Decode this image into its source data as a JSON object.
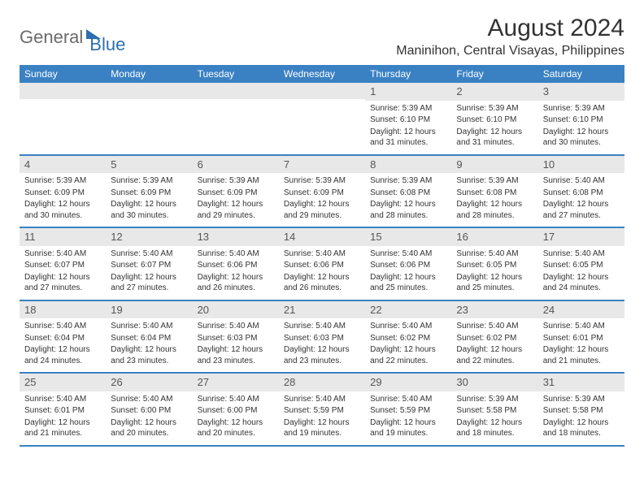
{
  "logo": {
    "part1": "General",
    "part2": "Blue"
  },
  "title": "August 2024",
  "location": "Maninihon, Central Visayas, Philippines",
  "weekdays": [
    "Sunday",
    "Monday",
    "Tuesday",
    "Wednesday",
    "Thursday",
    "Friday",
    "Saturday"
  ],
  "colors": {
    "header_bg": "#3a81c4",
    "header_text": "#ffffff",
    "daynum_bg": "#e8e8e8",
    "border": "#3a81c4",
    "logo_gray": "#6b6b6b",
    "logo_blue": "#2c6fb0"
  },
  "weeks": [
    [
      {
        "n": "",
        "sr": "",
        "ss": "",
        "dl": ""
      },
      {
        "n": "",
        "sr": "",
        "ss": "",
        "dl": ""
      },
      {
        "n": "",
        "sr": "",
        "ss": "",
        "dl": ""
      },
      {
        "n": "",
        "sr": "",
        "ss": "",
        "dl": ""
      },
      {
        "n": "1",
        "sr": "Sunrise: 5:39 AM",
        "ss": "Sunset: 6:10 PM",
        "dl": "Daylight: 12 hours and 31 minutes."
      },
      {
        "n": "2",
        "sr": "Sunrise: 5:39 AM",
        "ss": "Sunset: 6:10 PM",
        "dl": "Daylight: 12 hours and 31 minutes."
      },
      {
        "n": "3",
        "sr": "Sunrise: 5:39 AM",
        "ss": "Sunset: 6:10 PM",
        "dl": "Daylight: 12 hours and 30 minutes."
      }
    ],
    [
      {
        "n": "4",
        "sr": "Sunrise: 5:39 AM",
        "ss": "Sunset: 6:09 PM",
        "dl": "Daylight: 12 hours and 30 minutes."
      },
      {
        "n": "5",
        "sr": "Sunrise: 5:39 AM",
        "ss": "Sunset: 6:09 PM",
        "dl": "Daylight: 12 hours and 30 minutes."
      },
      {
        "n": "6",
        "sr": "Sunrise: 5:39 AM",
        "ss": "Sunset: 6:09 PM",
        "dl": "Daylight: 12 hours and 29 minutes."
      },
      {
        "n": "7",
        "sr": "Sunrise: 5:39 AM",
        "ss": "Sunset: 6:09 PM",
        "dl": "Daylight: 12 hours and 29 minutes."
      },
      {
        "n": "8",
        "sr": "Sunrise: 5:39 AM",
        "ss": "Sunset: 6:08 PM",
        "dl": "Daylight: 12 hours and 28 minutes."
      },
      {
        "n": "9",
        "sr": "Sunrise: 5:39 AM",
        "ss": "Sunset: 6:08 PM",
        "dl": "Daylight: 12 hours and 28 minutes."
      },
      {
        "n": "10",
        "sr": "Sunrise: 5:40 AM",
        "ss": "Sunset: 6:08 PM",
        "dl": "Daylight: 12 hours and 27 minutes."
      }
    ],
    [
      {
        "n": "11",
        "sr": "Sunrise: 5:40 AM",
        "ss": "Sunset: 6:07 PM",
        "dl": "Daylight: 12 hours and 27 minutes."
      },
      {
        "n": "12",
        "sr": "Sunrise: 5:40 AM",
        "ss": "Sunset: 6:07 PM",
        "dl": "Daylight: 12 hours and 27 minutes."
      },
      {
        "n": "13",
        "sr": "Sunrise: 5:40 AM",
        "ss": "Sunset: 6:06 PM",
        "dl": "Daylight: 12 hours and 26 minutes."
      },
      {
        "n": "14",
        "sr": "Sunrise: 5:40 AM",
        "ss": "Sunset: 6:06 PM",
        "dl": "Daylight: 12 hours and 26 minutes."
      },
      {
        "n": "15",
        "sr": "Sunrise: 5:40 AM",
        "ss": "Sunset: 6:06 PM",
        "dl": "Daylight: 12 hours and 25 minutes."
      },
      {
        "n": "16",
        "sr": "Sunrise: 5:40 AM",
        "ss": "Sunset: 6:05 PM",
        "dl": "Daylight: 12 hours and 25 minutes."
      },
      {
        "n": "17",
        "sr": "Sunrise: 5:40 AM",
        "ss": "Sunset: 6:05 PM",
        "dl": "Daylight: 12 hours and 24 minutes."
      }
    ],
    [
      {
        "n": "18",
        "sr": "Sunrise: 5:40 AM",
        "ss": "Sunset: 6:04 PM",
        "dl": "Daylight: 12 hours and 24 minutes."
      },
      {
        "n": "19",
        "sr": "Sunrise: 5:40 AM",
        "ss": "Sunset: 6:04 PM",
        "dl": "Daylight: 12 hours and 23 minutes."
      },
      {
        "n": "20",
        "sr": "Sunrise: 5:40 AM",
        "ss": "Sunset: 6:03 PM",
        "dl": "Daylight: 12 hours and 23 minutes."
      },
      {
        "n": "21",
        "sr": "Sunrise: 5:40 AM",
        "ss": "Sunset: 6:03 PM",
        "dl": "Daylight: 12 hours and 23 minutes."
      },
      {
        "n": "22",
        "sr": "Sunrise: 5:40 AM",
        "ss": "Sunset: 6:02 PM",
        "dl": "Daylight: 12 hours and 22 minutes."
      },
      {
        "n": "23",
        "sr": "Sunrise: 5:40 AM",
        "ss": "Sunset: 6:02 PM",
        "dl": "Daylight: 12 hours and 22 minutes."
      },
      {
        "n": "24",
        "sr": "Sunrise: 5:40 AM",
        "ss": "Sunset: 6:01 PM",
        "dl": "Daylight: 12 hours and 21 minutes."
      }
    ],
    [
      {
        "n": "25",
        "sr": "Sunrise: 5:40 AM",
        "ss": "Sunset: 6:01 PM",
        "dl": "Daylight: 12 hours and 21 minutes."
      },
      {
        "n": "26",
        "sr": "Sunrise: 5:40 AM",
        "ss": "Sunset: 6:00 PM",
        "dl": "Daylight: 12 hours and 20 minutes."
      },
      {
        "n": "27",
        "sr": "Sunrise: 5:40 AM",
        "ss": "Sunset: 6:00 PM",
        "dl": "Daylight: 12 hours and 20 minutes."
      },
      {
        "n": "28",
        "sr": "Sunrise: 5:40 AM",
        "ss": "Sunset: 5:59 PM",
        "dl": "Daylight: 12 hours and 19 minutes."
      },
      {
        "n": "29",
        "sr": "Sunrise: 5:40 AM",
        "ss": "Sunset: 5:59 PM",
        "dl": "Daylight: 12 hours and 19 minutes."
      },
      {
        "n": "30",
        "sr": "Sunrise: 5:39 AM",
        "ss": "Sunset: 5:58 PM",
        "dl": "Daylight: 12 hours and 18 minutes."
      },
      {
        "n": "31",
        "sr": "Sunrise: 5:39 AM",
        "ss": "Sunset: 5:58 PM",
        "dl": "Daylight: 12 hours and 18 minutes."
      }
    ]
  ]
}
